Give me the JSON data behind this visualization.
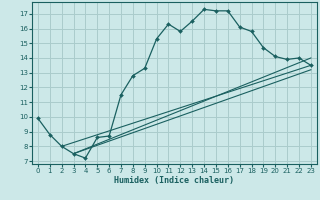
{
  "xlabel": "Humidex (Indice chaleur)",
  "bg_color": "#cce8e8",
  "grid_color": "#aacccc",
  "line_color": "#1a6060",
  "xlim": [
    -0.5,
    23.5
  ],
  "ylim": [
    6.8,
    17.8
  ],
  "xticks": [
    0,
    1,
    2,
    3,
    4,
    5,
    6,
    7,
    8,
    9,
    10,
    11,
    12,
    13,
    14,
    15,
    16,
    17,
    18,
    19,
    20,
    21,
    22,
    23
  ],
  "yticks": [
    7,
    8,
    9,
    10,
    11,
    12,
    13,
    14,
    15,
    16,
    17
  ],
  "curve_x": [
    0,
    1,
    2,
    3,
    4,
    5,
    6,
    7,
    8,
    9,
    10,
    11,
    12,
    13,
    14,
    15,
    16,
    17,
    18,
    19,
    20,
    21,
    22,
    23
  ],
  "curve_y": [
    9.9,
    8.8,
    8.0,
    7.5,
    7.2,
    8.6,
    8.7,
    11.5,
    12.8,
    13.3,
    15.3,
    16.3,
    15.8,
    16.5,
    17.3,
    17.2,
    17.2,
    16.1,
    15.8,
    14.7,
    14.1,
    13.9,
    14.0,
    13.5
  ],
  "line1_x": [
    2,
    23
  ],
  "line1_y": [
    8.0,
    13.5
  ],
  "line2_x": [
    3,
    23
  ],
  "line2_y": [
    7.5,
    13.2
  ],
  "line3_x": [
    3,
    23
  ],
  "line3_y": [
    7.5,
    14.0
  ]
}
